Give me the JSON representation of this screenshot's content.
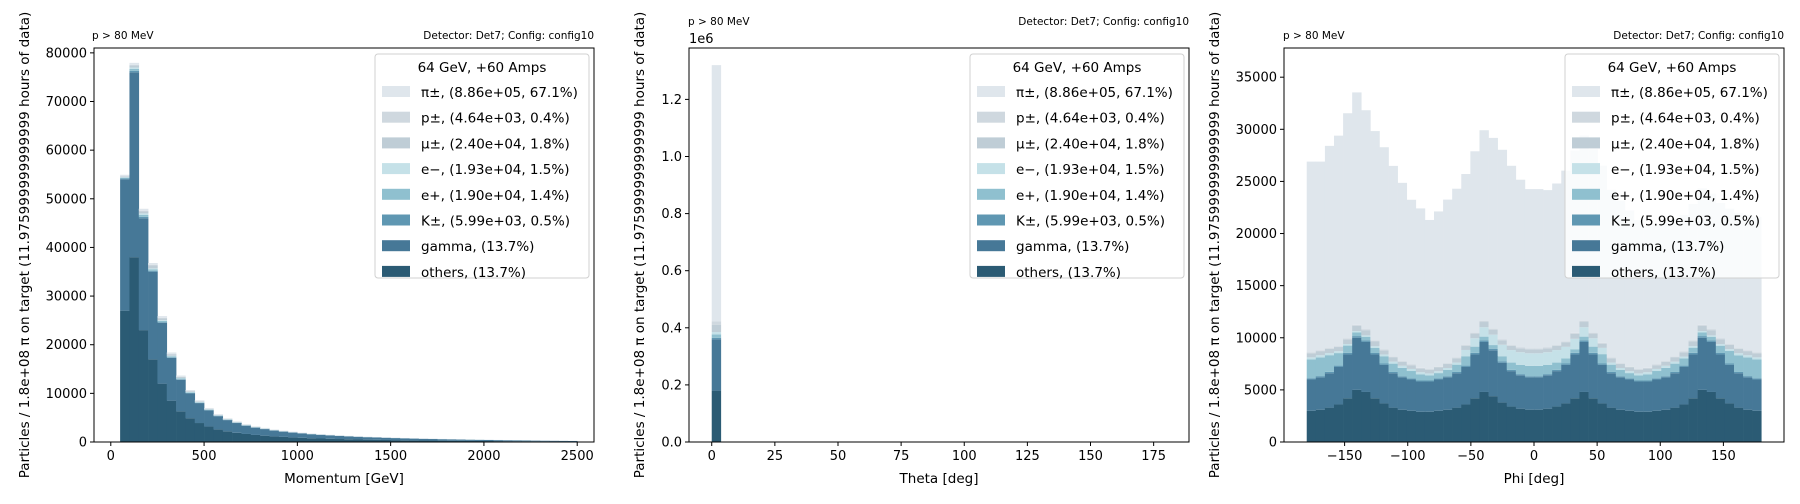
{
  "colors": {
    "pi": "#dfe6ec",
    "p": "#cfd8df",
    "mu": "#bfcdd6",
    "e_minus": "#c5e1e8",
    "e_plus": "#8fc0cf",
    "K": "#5f97b2",
    "gamma": "#467897",
    "others": "#2b5b74"
  },
  "legend": {
    "title": "64 GeV, +60 Amps",
    "entries": [
      {
        "key": "pi",
        "label": "π±, (8.86e+05, 67.1%)"
      },
      {
        "key": "p",
        "label": "p±, (4.64e+03, 0.4%)"
      },
      {
        "key": "mu",
        "label": "μ±, (2.40e+04, 1.8%)"
      },
      {
        "key": "e_minus",
        "label": "e−, (1.93e+04, 1.5%)"
      },
      {
        "key": "e_plus",
        "label": "e+, (1.90e+04, 1.4%)"
      },
      {
        "key": "K",
        "label": "K±, (5.99e+03, 0.5%)"
      },
      {
        "key": "gamma",
        "label": "gamma, (13.7%)"
      },
      {
        "key": "others",
        "label": "others, (13.7%)"
      }
    ]
  },
  "chart_data": [
    {
      "type": "bar",
      "stacked": true,
      "cut_label": "p > 80 MeV",
      "detector_label": "Detector: Det7; Config: config10",
      "xlabel": "Momentum [GeV]",
      "ylabel": "Particles / 1.8e+08 π on target (11.975999999999999 hours of data)",
      "xlim": [
        -90,
        2590
      ],
      "ylim": [
        0,
        81000
      ],
      "xticks": [
        0,
        500,
        1000,
        1500,
        2000,
        2500
      ],
      "yticks": [
        0,
        10000,
        20000,
        30000,
        40000,
        50000,
        60000,
        70000,
        80000
      ],
      "bin_start": 50,
      "bin_width": 50,
      "stack": {
        "others": [
          27000,
          38000,
          23000,
          17000,
          12000,
          8500,
          6300,
          4900,
          3900,
          3200,
          2600,
          2200,
          1900,
          1650,
          1450,
          1300,
          1150,
          1050,
          950,
          860,
          780,
          720,
          660,
          610,
          560,
          520,
          480,
          450,
          420,
          390,
          360,
          340,
          320,
          300,
          280,
          260,
          245,
          230,
          215,
          200,
          185,
          170,
          160,
          150,
          140,
          130,
          120,
          110,
          100
        ],
        "gamma": [
          27000,
          38000,
          23000,
          18000,
          12500,
          8800,
          6500,
          5100,
          4100,
          3300,
          2700,
          2300,
          2000,
          1700,
          1500,
          1350,
          1200,
          1080,
          980,
          890,
          810,
          740,
          680,
          630,
          580,
          540,
          500,
          470,
          440,
          410,
          380,
          355,
          330,
          310,
          290,
          270,
          255,
          240,
          225,
          210,
          195,
          180,
          165,
          155,
          145,
          135,
          125,
          115,
          105
        ],
        "K": [
          200,
          300,
          300,
          200,
          150,
          120,
          100,
          80,
          70,
          60,
          50,
          45,
          40,
          35,
          30,
          28,
          25,
          22,
          20,
          18,
          17,
          16,
          15,
          14,
          13,
          12,
          11,
          10,
          10,
          9,
          9,
          8,
          8,
          7,
          7,
          6,
          6,
          6,
          5,
          5,
          5,
          5,
          4,
          4,
          4,
          4,
          3,
          3,
          3
        ],
        "e_plus": [
          150,
          400,
          400,
          300,
          250,
          200,
          150,
          120,
          100,
          90,
          80,
          70,
          60,
          55,
          50,
          45,
          40,
          35,
          32,
          30,
          28,
          26,
          24,
          22,
          20,
          19,
          18,
          17,
          16,
          15,
          14,
          13,
          12,
          11,
          10,
          10,
          9,
          9,
          8,
          8,
          7,
          7,
          6,
          6,
          6,
          5,
          5,
          5,
          4
        ],
        "e_minus": [
          100,
          300,
          300,
          200,
          150,
          120,
          100,
          80,
          70,
          60,
          50,
          45,
          40,
          35,
          30,
          28,
          25,
          22,
          20,
          18,
          17,
          16,
          15,
          14,
          13,
          12,
          11,
          10,
          10,
          9,
          9,
          8,
          8,
          7,
          7,
          6,
          6,
          6,
          5,
          5,
          5,
          5,
          4,
          4,
          4,
          4,
          3,
          3,
          3
        ],
        "mu": [
          150,
          450,
          450,
          600,
          400,
          300,
          200,
          150,
          120,
          100,
          90,
          80,
          70,
          60,
          55,
          50,
          45,
          40,
          36,
          33,
          30,
          28,
          26,
          24,
          22,
          20,
          19,
          18,
          17,
          16,
          15,
          14,
          13,
          12,
          11,
          10,
          10,
          9,
          9,
          8,
          8,
          7,
          7,
          6,
          6,
          6,
          5,
          5,
          5
        ],
        "p": [
          40,
          100,
          100,
          100,
          80,
          70,
          60,
          50,
          40,
          35,
          30,
          28,
          25,
          22,
          20,
          18,
          16,
          14,
          13,
          12,
          11,
          10,
          9,
          8,
          8,
          7,
          7,
          6,
          6,
          5,
          5,
          5,
          4,
          4,
          4,
          4,
          3,
          3,
          3,
          3,
          3,
          3,
          2,
          2,
          2,
          2,
          2,
          2,
          2
        ],
        "pi": [
          300,
          400,
          400,
          400,
          350,
          300,
          250,
          200,
          170,
          150,
          130,
          120,
          110,
          100,
          90,
          85,
          80,
          75,
          70,
          65,
          60,
          55,
          52,
          50,
          48,
          45,
          43,
          40,
          38,
          36,
          34,
          32,
          30,
          28,
          26,
          25,
          24,
          23,
          22,
          21,
          20,
          19,
          18,
          17,
          16,
          15,
          14,
          13,
          12
        ]
      }
    },
    {
      "type": "bar",
      "stacked": true,
      "cut_label": "p > 80 MeV",
      "detector_label": "Detector: Det7; Config: config10",
      "xlabel": "Theta [deg]",
      "ylabel": "Particles / 1.8e+08 π on target (11.975999999999999 hours of data)",
      "offset_label": "1e6",
      "xlim": [
        -9,
        189
      ],
      "ylim": [
        0,
        1380000
      ],
      "xticks": [
        0,
        25,
        50,
        75,
        100,
        125,
        150,
        175
      ],
      "yticks": [
        0,
        200000,
        400000,
        600000,
        800000,
        1000000,
        1200000
      ],
      "ytick_labels": [
        "0.0",
        "0.2",
        "0.4",
        "0.6",
        "0.8",
        "1.0",
        "1.2"
      ],
      "bin_start": 0,
      "bin_width": 3.6,
      "stack": {
        "others": [
          180000
        ],
        "gamma": [
          180000
        ],
        "K": [
          5000
        ],
        "e_plus": [
          12000
        ],
        "e_minus": [
          8000
        ],
        "mu": [
          25000
        ],
        "p": [
          12000
        ],
        "pi": [
          898000
        ]
      }
    },
    {
      "type": "bar",
      "stacked": true,
      "cut_label": "p > 80 MeV",
      "detector_label": "Detector: Det7; Config: config10",
      "xlabel": "Phi [deg]",
      "ylabel": "Particles / 1.8e+08 π on target (11.975999999999999 hours of data)",
      "xlim": [
        -198,
        198
      ],
      "ylim": [
        0,
        37800
      ],
      "xticks": [
        -150,
        -100,
        -50,
        0,
        50,
        100,
        150
      ],
      "xtick_labels": [
        "−150",
        "−100",
        "−50",
        "0",
        "50",
        "100",
        "150"
      ],
      "yticks": [
        0,
        5000,
        10000,
        15000,
        20000,
        25000,
        30000,
        35000
      ],
      "bin_start": -180,
      "bin_width": 7.2,
      "stack": {
        "others": [
          3000,
          3100,
          3300,
          3600,
          4200,
          5000,
          4800,
          4200,
          3700,
          3300,
          3100,
          3000,
          2900,
          2900,
          3000,
          3100,
          3300,
          3600,
          4200,
          4800,
          4400,
          3800,
          3400,
          3200,
          3100,
          3100,
          3200,
          3400,
          3700,
          4200,
          4800,
          4200,
          3700,
          3300,
          3100,
          3000,
          2900,
          2900,
          3000,
          3100,
          3300,
          3600,
          4200,
          5000,
          4800,
          4200,
          3700,
          3300,
          3100,
          3000
        ],
        "gamma": [
          3000,
          3100,
          3300,
          3600,
          4200,
          5000,
          4800,
          4200,
          3700,
          3300,
          3100,
          3000,
          2900,
          2900,
          3000,
          3100,
          3300,
          3600,
          4200,
          4800,
          4400,
          3800,
          3400,
          3200,
          3100,
          3100,
          3200,
          3400,
          3700,
          4200,
          4800,
          4200,
          3700,
          3300,
          3100,
          3000,
          2900,
          2900,
          3000,
          3100,
          3300,
          3600,
          4200,
          5000,
          4800,
          4200,
          3700,
          3300,
          3100,
          3000
        ],
        "K": [
          120,
          120,
          130,
          130,
          150,
          160,
          150,
          140,
          130,
          120,
          110,
          110,
          100,
          100,
          110,
          110,
          120,
          130,
          150,
          160,
          150,
          130,
          120,
          110,
          110,
          110,
          110,
          120,
          130,
          150,
          160,
          150,
          130,
          120,
          110,
          110,
          100,
          100,
          110,
          110,
          120,
          130,
          150,
          160,
          150,
          140,
          130,
          120,
          120,
          120
        ],
        "e_plus": [
          1800,
          1800,
          1600,
          1200,
          700,
          350,
          350,
          500,
          700,
          800,
          800,
          700,
          600,
          500,
          500,
          600,
          700,
          900,
          600,
          350,
          350,
          500,
          700,
          900,
          1000,
          1000,
          900,
          700,
          500,
          350,
          350,
          600,
          900,
          700,
          600,
          500,
          500,
          600,
          700,
          800,
          800,
          700,
          500,
          350,
          350,
          700,
          1200,
          1600,
          1800,
          1800
        ],
        "e_minus": [
          200,
          200,
          200,
          180,
          150,
          130,
          130,
          150,
          170,
          190,
          200,
          200,
          190,
          180,
          180,
          190,
          200,
          600,
          800,
          900,
          1000,
          1100,
          1200,
          1200,
          1200,
          1200,
          1200,
          1200,
          1100,
          1000,
          900,
          800,
          600,
          200,
          190,
          180,
          180,
          190,
          200,
          200,
          190,
          170,
          150,
          130,
          130,
          150,
          180,
          200,
          200,
          200
        ],
        "mu": [
          400,
          400,
          400,
          400,
          450,
          500,
          500,
          450,
          400,
          400,
          380,
          360,
          350,
          350,
          360,
          380,
          400,
          400,
          450,
          500,
          480,
          420,
          400,
          380,
          380,
          380,
          380,
          400,
          420,
          480,
          500,
          450,
          400,
          400,
          380,
          360,
          350,
          350,
          360,
          380,
          400,
          400,
          450,
          500,
          500,
          450,
          400,
          400,
          400,
          400
        ],
        "p": [
          80,
          80,
          80,
          80,
          90,
          100,
          100,
          90,
          80,
          80,
          75,
          70,
          70,
          70,
          70,
          75,
          80,
          80,
          90,
          100,
          95,
          85,
          80,
          75,
          75,
          75,
          75,
          80,
          85,
          95,
          100,
          90,
          80,
          80,
          75,
          70,
          70,
          70,
          70,
          75,
          80,
          80,
          90,
          100,
          100,
          90,
          80,
          80,
          80,
          80
        ],
        "pi": [
          18300,
          18100,
          19400,
          20200,
          21600,
          22300,
          21000,
          20100,
          19400,
          18300,
          17100,
          15800,
          15300,
          14300,
          14900,
          15700,
          16200,
          16400,
          17400,
          18300,
          18300,
          18200,
          17200,
          16100,
          15300,
          15300,
          15100,
          15500,
          16400,
          17500,
          17800,
          17600,
          17000,
          16100,
          15600,
          15000,
          14300,
          13600,
          13400,
          13300,
          13200,
          13100,
          13100,
          13100,
          13000,
          13000,
          13000,
          13000,
          13000,
          13000
        ]
      }
    }
  ]
}
